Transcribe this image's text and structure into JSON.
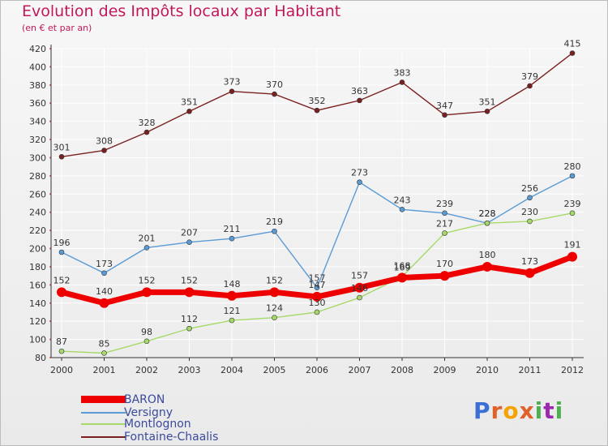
{
  "header": {
    "title": "Evolution des Impôts locaux par Habitant",
    "subtitle": "(en € et par an)"
  },
  "logo": {
    "text": "Proxiti",
    "colors": [
      "#3b6fd6",
      "#e0622a",
      "#f4a300",
      "#e0622a",
      "#4caf50",
      "#9c27b0",
      "#4caf50"
    ]
  },
  "chart_data": {
    "type": "line",
    "title": "Evolution des Impôts locaux par Habitant",
    "subtitle": "(en € et par an)",
    "xlabel": "",
    "ylabel": "",
    "x": [
      "2000",
      "2001",
      "2002",
      "2003",
      "2004",
      "2005",
      "2006",
      "2007",
      "2008",
      "2009",
      "2010",
      "2011",
      "2012"
    ],
    "ylim": [
      80,
      420
    ],
    "yticks": [
      80,
      100,
      120,
      140,
      160,
      180,
      200,
      220,
      240,
      260,
      280,
      300,
      320,
      340,
      360,
      380,
      400,
      420
    ],
    "grid": true,
    "legend_position": "bottom-left",
    "series": [
      {
        "name": "BARON",
        "color": "#ee0000",
        "values": [
          152,
          140,
          152,
          152,
          148,
          152,
          147,
          157,
          168,
          170,
          180,
          173,
          191
        ],
        "labels": [
          "152",
          "140",
          "152",
          "152",
          "148",
          "152",
          "147",
          "157",
          "168",
          "170",
          "180",
          "173",
          "191"
        ]
      },
      {
        "name": "Versigny",
        "color": "#5b9bd5",
        "values": [
          196,
          173,
          201,
          207,
          211,
          219,
          157,
          273,
          243,
          239,
          228,
          256,
          280
        ],
        "labels": [
          "196",
          "173",
          "201",
          "207",
          "211",
          "219",
          "157",
          "273",
          "243",
          "239",
          "228",
          "256",
          "280"
        ]
      },
      {
        "name": "Montlognon",
        "color": "#a6d96a",
        "values": [
          87,
          85,
          98,
          112,
          121,
          124,
          130,
          146,
          169,
          217,
          228,
          230,
          239
        ],
        "labels": [
          "87",
          "85",
          "98",
          "112",
          "121",
          "124",
          "130",
          "146",
          "169",
          "217",
          "228",
          "230",
          "239"
        ]
      },
      {
        "name": "Fontaine-Chaalis",
        "color": "#7b2020",
        "values": [
          301,
          308,
          328,
          351,
          373,
          370,
          352,
          363,
          383,
          347,
          351,
          379,
          415
        ],
        "labels": [
          "301",
          "308",
          "328",
          "351",
          "373",
          "370",
          "352",
          "363",
          "383",
          "347",
          "351",
          "379",
          "415"
        ]
      }
    ]
  }
}
